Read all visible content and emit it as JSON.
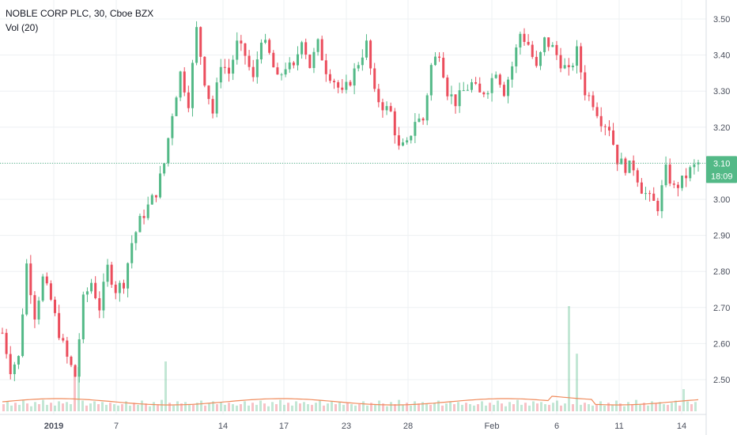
{
  "header": {
    "title": "NOBLE CORP PLC, 30, Cboe BZX",
    "volume_label": "Vol (20)"
  },
  "price_badge": {
    "price": "3.10",
    "countdown": "18:09",
    "color": "#53b987"
  },
  "colors": {
    "up": "#53b987",
    "down": "#eb4d5c",
    "grid": "#eef0f3",
    "volume_ma": "#f08b5c",
    "axis_text": "#4a4f5c"
  },
  "chart_data": {
    "type": "candlestick",
    "title": "NOBLE CORP PLC, 30, Cboe BZX",
    "interval": "30",
    "y_axis": {
      "position": "right",
      "range": [
        2.42,
        3.52
      ],
      "ticks": [
        "3.50",
        "3.40",
        "3.30",
        "3.20",
        "3.10",
        "3.00",
        "2.90",
        "2.80",
        "2.70",
        "2.60",
        "2.50"
      ]
    },
    "x_axis": {
      "ticks": [
        "2019",
        "7",
        "14",
        "17",
        "23",
        "28",
        "Feb",
        "6",
        "11",
        "14"
      ]
    },
    "last_price": 3.1,
    "grid": true,
    "price_path": [
      {
        "t": 0,
        "p": 2.63
      },
      {
        "t": 1,
        "p": 2.53
      },
      {
        "t": 2,
        "p": 2.56
      },
      {
        "t": 3,
        "p": 2.82
      },
      {
        "t": 4,
        "p": 2.68
      },
      {
        "t": 5,
        "p": 2.78
      },
      {
        "t": 6,
        "p": 2.72
      },
      {
        "t": 7,
        "p": 2.63
      },
      {
        "t": 8,
        "p": 2.56
      },
      {
        "t": 9,
        "p": 2.51
      },
      {
        "t": 10,
        "p": 2.72
      },
      {
        "t": 11,
        "p": 2.77
      },
      {
        "t": 12,
        "p": 2.7
      },
      {
        "t": 13,
        "p": 2.81
      },
      {
        "t": 14,
        "p": 2.75
      },
      {
        "t": 15,
        "p": 2.77
      },
      {
        "t": 16,
        "p": 2.88
      },
      {
        "t": 17,
        "p": 2.94
      },
      {
        "t": 18,
        "p": 2.98
      },
      {
        "t": 19,
        "p": 3.02
      },
      {
        "t": 20,
        "p": 3.1
      },
      {
        "t": 21,
        "p": 3.24
      },
      {
        "t": 22,
        "p": 3.35
      },
      {
        "t": 23,
        "p": 3.27
      },
      {
        "t": 24,
        "p": 3.47
      },
      {
        "t": 25,
        "p": 3.33
      },
      {
        "t": 26,
        "p": 3.24
      },
      {
        "t": 27,
        "p": 3.38
      },
      {
        "t": 28,
        "p": 3.35
      },
      {
        "t": 29,
        "p": 3.43
      },
      {
        "t": 30,
        "p": 3.4
      },
      {
        "t": 31,
        "p": 3.33
      },
      {
        "t": 32,
        "p": 3.45
      },
      {
        "t": 33,
        "p": 3.4
      },
      {
        "t": 34,
        "p": 3.33
      },
      {
        "t": 35,
        "p": 3.37
      },
      {
        "t": 36,
        "p": 3.36
      },
      {
        "t": 37,
        "p": 3.45
      },
      {
        "t": 38,
        "p": 3.37
      },
      {
        "t": 39,
        "p": 3.43
      },
      {
        "t": 40,
        "p": 3.36
      },
      {
        "t": 41,
        "p": 3.33
      },
      {
        "t": 42,
        "p": 3.29
      },
      {
        "t": 43,
        "p": 3.33
      },
      {
        "t": 44,
        "p": 3.38
      },
      {
        "t": 45,
        "p": 3.43
      },
      {
        "t": 46,
        "p": 3.29
      },
      {
        "t": 47,
        "p": 3.26
      },
      {
        "t": 48,
        "p": 3.24
      },
      {
        "t": 49,
        "p": 3.14
      },
      {
        "t": 50,
        "p": 3.15
      },
      {
        "t": 51,
        "p": 3.22
      },
      {
        "t": 52,
        "p": 3.22
      },
      {
        "t": 53,
        "p": 3.37
      },
      {
        "t": 54,
        "p": 3.41
      },
      {
        "t": 55,
        "p": 3.3
      },
      {
        "t": 56,
        "p": 3.27
      },
      {
        "t": 57,
        "p": 3.3
      },
      {
        "t": 58,
        "p": 3.32
      },
      {
        "t": 59,
        "p": 3.29
      },
      {
        "t": 60,
        "p": 3.31
      },
      {
        "t": 61,
        "p": 3.36
      },
      {
        "t": 62,
        "p": 3.3
      },
      {
        "t": 63,
        "p": 3.37
      },
      {
        "t": 64,
        "p": 3.46
      },
      {
        "t": 65,
        "p": 3.43
      },
      {
        "t": 66,
        "p": 3.36
      },
      {
        "t": 67,
        "p": 3.44
      },
      {
        "t": 68,
        "p": 3.42
      },
      {
        "t": 69,
        "p": 3.38
      },
      {
        "t": 70,
        "p": 3.35
      },
      {
        "t": 71,
        "p": 3.41
      },
      {
        "t": 72,
        "p": 3.3
      },
      {
        "t": 73,
        "p": 3.27
      },
      {
        "t": 74,
        "p": 3.22
      },
      {
        "t": 75,
        "p": 3.2
      },
      {
        "t": 76,
        "p": 3.11
      },
      {
        "t": 77,
        "p": 3.09
      },
      {
        "t": 78,
        "p": 3.09
      },
      {
        "t": 79,
        "p": 3.03
      },
      {
        "t": 80,
        "p": 3.0
      },
      {
        "t": 81,
        "p": 2.98
      },
      {
        "t": 82,
        "p": 3.08
      },
      {
        "t": 83,
        "p": 3.03
      },
      {
        "t": 84,
        "p": 3.05
      },
      {
        "t": 85,
        "p": 3.08
      },
      {
        "t": 86,
        "p": 3.1
      }
    ],
    "volume": {
      "series_name": "Vol (20)",
      "baseline": [
        10,
        14,
        8,
        12,
        9,
        15,
        11,
        7,
        13,
        10,
        16,
        9,
        12,
        8,
        14,
        11,
        13,
        10,
        9,
        12,
        15,
        8,
        11,
        14,
        10,
        13,
        9,
        12,
        10,
        8
      ],
      "spikes": [
        {
          "t": 9,
          "v": 40
        },
        {
          "t": 20,
          "v": 45
        },
        {
          "t": 70,
          "v": 95
        },
        {
          "t": 71,
          "v": 52
        },
        {
          "t": 84,
          "v": 20
        }
      ]
    }
  }
}
